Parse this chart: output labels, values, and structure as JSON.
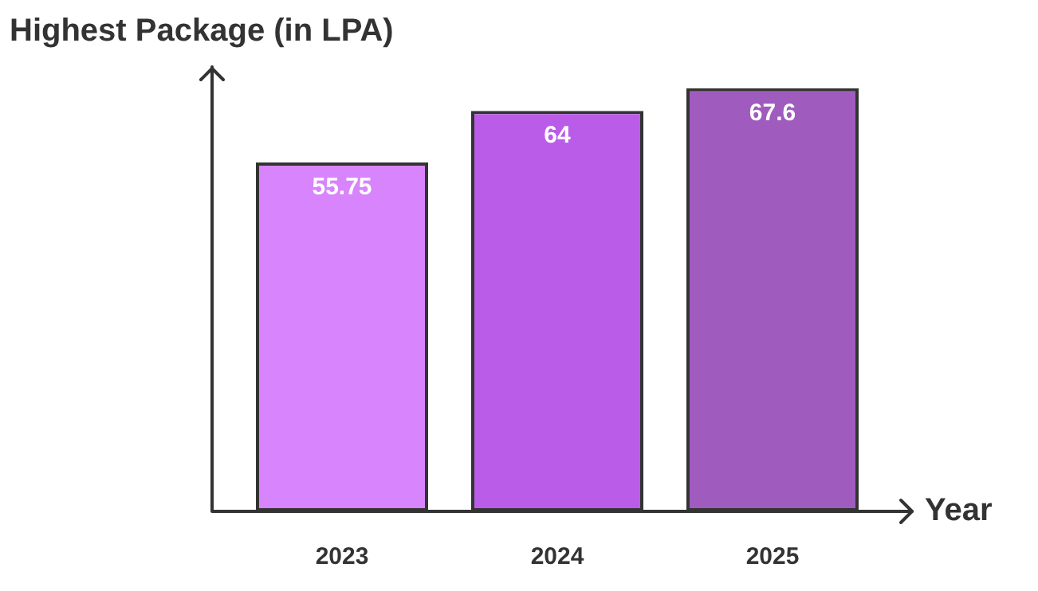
{
  "chart_data": {
    "type": "bar",
    "ylabel": "Highest Package (in LPA)",
    "xlabel": "Year",
    "categories": [
      "2023",
      "2024",
      "2025"
    ],
    "values": [
      55.75,
      64,
      67.6
    ],
    "colors": [
      "#d884fc",
      "#bb5ce8",
      "#9f5bbe"
    ],
    "data_labels": true
  }
}
